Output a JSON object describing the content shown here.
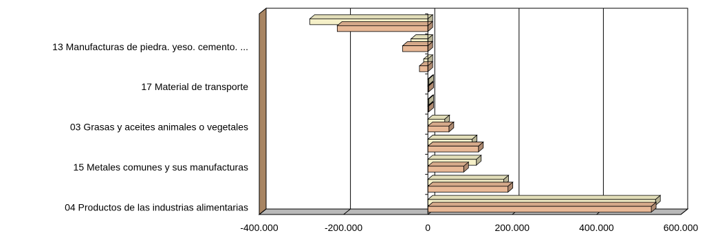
{
  "chart_data": {
    "type": "bar",
    "orientation": "horizontal",
    "three_d": true,
    "categories": [
      "04 Productos de las industrias alimentarias",
      "",
      "15 Metales comunes y sus manufacturas",
      "",
      "03 Grasas y aceites animales o vegetales",
      "",
      "17 Material de transporte",
      "",
      "13 Manufacturas de piedra. yeso. cemento. ...",
      ""
    ],
    "series": [
      {
        "color": "#F5F0C8",
        "values": [
          540000,
          180000,
          115000,
          105000,
          40000,
          2000,
          2000,
          -10000,
          -40000,
          -280000
        ]
      },
      {
        "color": "#E8B896",
        "values": [
          530000,
          190000,
          85000,
          120000,
          50000,
          2000,
          2000,
          -20000,
          -60000,
          -215000
        ]
      }
    ],
    "xlim": [
      -400000,
      600000
    ],
    "xticks": [
      "-400.000",
      "-200.000",
      "0",
      "200.000",
      "400.000",
      "600.000"
    ],
    "xtick_values": [
      -400000,
      -200000,
      0,
      200000,
      400000,
      600000
    ],
    "grid": "vertical",
    "legend": "none",
    "title": "",
    "xlabel": "",
    "ylabel": ""
  }
}
